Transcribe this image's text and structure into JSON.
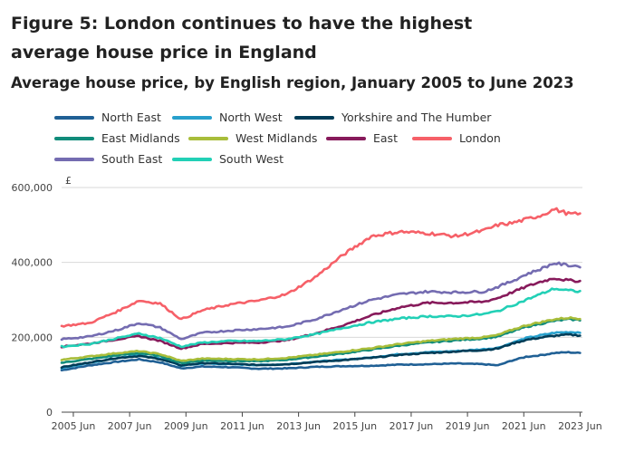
{
  "figure": {
    "title": "Figure 5: London continues to have the highest average house price in England",
    "subtitle": "Average house price, by English region, January 2005 to June 2023"
  },
  "chart_data": {
    "type": "line",
    "title": "Figure 5: London continues to have the highest average house price in England",
    "subtitle": "Average house price, by English region, January 2005 to June 2023",
    "xlabel": "",
    "ylabel": "£",
    "xlim": [
      2005.0,
      2023.5
    ],
    "ylim": [
      0,
      600000
    ],
    "grid": "horizontal",
    "legend_position": "top",
    "y_ticks": [
      {
        "value": 0,
        "label": "0"
      },
      {
        "value": 200000,
        "label": "200,000"
      },
      {
        "value": 400000,
        "label": "400,000"
      },
      {
        "value": 600000,
        "label": "600,000"
      }
    ],
    "x_ticks": [
      {
        "value": 2005.417,
        "label": "2005 Jun"
      },
      {
        "value": 2007.417,
        "label": "2007 Jun"
      },
      {
        "value": 2009.417,
        "label": "2009 Jun"
      },
      {
        "value": 2011.417,
        "label": "2011 Jun"
      },
      {
        "value": 2013.417,
        "label": "2013 Jun"
      },
      {
        "value": 2015.417,
        "label": "2015 Jun"
      },
      {
        "value": 2017.417,
        "label": "2017 Jun"
      },
      {
        "value": 2019.417,
        "label": "2019 Jun"
      },
      {
        "value": 2021.417,
        "label": "2021 Jun"
      },
      {
        "value": 2023.417,
        "label": "2023 Jun"
      }
    ],
    "series": [
      {
        "name": "North East",
        "color": "#206095",
        "x": [
          2005,
          2006,
          2007,
          2007.75,
          2008.5,
          2009.25,
          2010,
          2011,
          2012,
          2013,
          2014,
          2015,
          2016,
          2017,
          2018,
          2019,
          2020,
          2020.5,
          2021,
          2021.5,
          2022,
          2022.5,
          2023,
          2023.42
        ],
        "values": [
          112000,
          125000,
          135000,
          141000,
          133000,
          117000,
          122000,
          120000,
          116000,
          117000,
          121000,
          123000,
          124000,
          127000,
          128000,
          130000,
          128000,
          125000,
          138000,
          148000,
          152000,
          158000,
          160000,
          158000
        ]
      },
      {
        "name": "North West",
        "color": "#27a0cc",
        "x": [
          2005,
          2006,
          2007,
          2007.75,
          2008.5,
          2009.25,
          2010,
          2011,
          2012,
          2013,
          2014,
          2015,
          2016,
          2017,
          2018,
          2019,
          2020,
          2020.5,
          2021,
          2021.5,
          2022,
          2022.5,
          2023,
          2023.42
        ],
        "values": [
          118000,
          132000,
          145000,
          152000,
          143000,
          124000,
          130000,
          128000,
          126000,
          128000,
          135000,
          140000,
          146000,
          155000,
          160000,
          163000,
          168000,
          172000,
          185000,
          198000,
          205000,
          212000,
          214000,
          213000
        ]
      },
      {
        "name": "Yorkshire and The Humber",
        "color": "#003c57",
        "x": [
          2005,
          2006,
          2007,
          2007.75,
          2008.5,
          2009.25,
          2010,
          2011,
          2012,
          2013,
          2014,
          2015,
          2016,
          2017,
          2018,
          2019,
          2020,
          2020.5,
          2021,
          2021.5,
          2022,
          2022.5,
          2023,
          2023.42
        ],
        "values": [
          120000,
          133000,
          145000,
          150000,
          142000,
          125000,
          131000,
          129000,
          126000,
          128000,
          134000,
          139000,
          145000,
          153000,
          158000,
          162000,
          166000,
          170000,
          183000,
          193000,
          199000,
          204000,
          207000,
          205000
        ]
      },
      {
        "name": "East Midlands",
        "color": "#118c7b",
        "x": [
          2005,
          2006,
          2007,
          2007.75,
          2008.5,
          2009.25,
          2010,
          2011,
          2012,
          2013,
          2014,
          2015,
          2016,
          2017,
          2018,
          2019,
          2020,
          2020.5,
          2021,
          2021.5,
          2022,
          2022.5,
          2023,
          2023.42
        ],
        "values": [
          132000,
          142000,
          152000,
          158000,
          150000,
          131000,
          138000,
          137000,
          136000,
          140000,
          148000,
          157000,
          167000,
          178000,
          186000,
          192000,
          197000,
          202000,
          215000,
          228000,
          236000,
          244000,
          248000,
          246000
        ]
      },
      {
        "name": "West Midlands",
        "color": "#a8bd3a",
        "x": [
          2005,
          2006,
          2007,
          2007.75,
          2008.5,
          2009.25,
          2010,
          2011,
          2012,
          2013,
          2014,
          2015,
          2016,
          2017,
          2018,
          2019,
          2020,
          2020.5,
          2021,
          2021.5,
          2022,
          2022.5,
          2023,
          2023.42
        ],
        "values": [
          140000,
          149000,
          158000,
          163000,
          155000,
          137000,
          143000,
          142000,
          141000,
          145000,
          153000,
          162000,
          171000,
          182000,
          190000,
          196000,
          200000,
          206000,
          220000,
          232000,
          240000,
          248000,
          252000,
          250000
        ]
      },
      {
        "name": "East",
        "color": "#871a5b",
        "x": [
          2005,
          2006,
          2007,
          2007.75,
          2008.5,
          2009.25,
          2010,
          2011,
          2012,
          2013,
          2014,
          2015,
          2016,
          2017,
          2018,
          2019,
          2020,
          2020.5,
          2021,
          2021.5,
          2022,
          2022.5,
          2023,
          2023.42
        ],
        "values": [
          175000,
          183000,
          195000,
          203000,
          190000,
          170000,
          182000,
          185000,
          186000,
          192000,
          210000,
          232000,
          258000,
          280000,
          292000,
          292000,
          295000,
          305000,
          320000,
          335000,
          348000,
          358000,
          352000,
          350000
        ]
      },
      {
        "name": "London",
        "color": "#f66068",
        "x": [
          2005,
          2006,
          2007,
          2007.75,
          2008.5,
          2009.25,
          2010,
          2011,
          2012,
          2013,
          2014,
          2015,
          2016,
          2017,
          2018,
          2019,
          2020,
          2020.5,
          2021,
          2021.5,
          2022,
          2022.5,
          2023,
          2023.42
        ],
        "values": [
          230000,
          238000,
          270000,
          298000,
          290000,
          248000,
          272000,
          288000,
          298000,
          315000,
          360000,
          420000,
          470000,
          482000,
          478000,
          470000,
          485000,
          500000,
          505000,
          515000,
          525000,
          542000,
          530000,
          528000
        ]
      },
      {
        "name": "South East",
        "color": "#746cb1",
        "x": [
          2005,
          2006,
          2007,
          2007.75,
          2008.5,
          2009.25,
          2010,
          2011,
          2012,
          2013,
          2014,
          2015,
          2016,
          2017,
          2018,
          2019,
          2020,
          2020.5,
          2021,
          2021.5,
          2022,
          2022.5,
          2023,
          2023.42
        ],
        "values": [
          195000,
          202000,
          220000,
          238000,
          226000,
          195000,
          212000,
          218000,
          222000,
          228000,
          248000,
          275000,
          300000,
          315000,
          322000,
          320000,
          322000,
          335000,
          350000,
          368000,
          382000,
          398000,
          392000,
          390000
        ]
      },
      {
        "name": "South West",
        "color": "#22d0b6",
        "x": [
          2005,
          2006,
          2007,
          2007.75,
          2008.5,
          2009.25,
          2010,
          2011,
          2012,
          2013,
          2014,
          2015,
          2016,
          2017,
          2018,
          2019,
          2020,
          2020.5,
          2021,
          2021.5,
          2022,
          2022.5,
          2023,
          2023.42
        ],
        "values": [
          175000,
          182000,
          198000,
          210000,
          198000,
          175000,
          186000,
          190000,
          190000,
          195000,
          208000,
          225000,
          240000,
          250000,
          256000,
          256000,
          262000,
          270000,
          285000,
          300000,
          315000,
          330000,
          325000,
          322000
        ]
      }
    ]
  }
}
